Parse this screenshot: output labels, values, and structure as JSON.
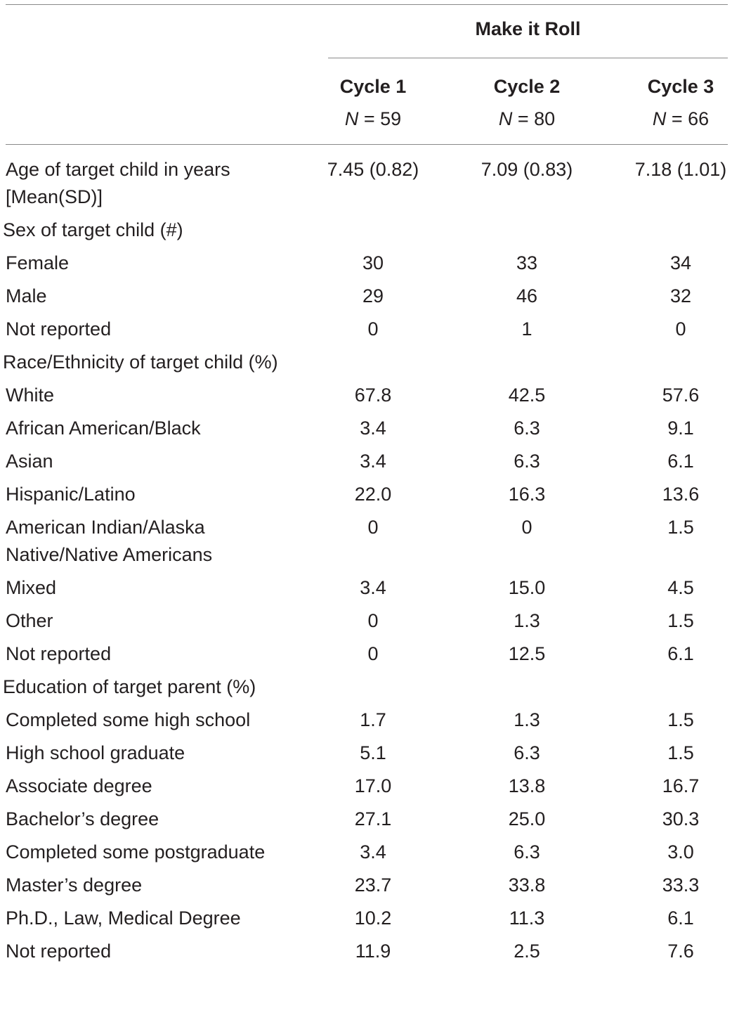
{
  "header": {
    "group_title": "Make it Roll",
    "columns": [
      {
        "name": "Cycle 1",
        "n_label": "N",
        "n_value": " = 59"
      },
      {
        "name": "Cycle 2",
        "n_label": "N",
        "n_value": " = 80"
      },
      {
        "name": "Cycle 3",
        "n_label": "N",
        "n_value": " = 66"
      }
    ]
  },
  "rows": [
    {
      "label": "Age of target child in years [Mean(SD)]",
      "values": [
        "7.45 (0.82)",
        "7.09 (0.83)",
        "7.18 (1.01)"
      ]
    },
    {
      "label": "Sex of target child (#)",
      "section": true,
      "values": [
        "",
        "",
        ""
      ]
    },
    {
      "label": "Female",
      "values": [
        "30",
        "33",
        "34"
      ]
    },
    {
      "label": "Male",
      "values": [
        "29",
        "46",
        "32"
      ]
    },
    {
      "label": "Not reported",
      "values": [
        "0",
        "1",
        "0"
      ]
    },
    {
      "label": "Race/Ethnicity of target child (%)",
      "section": true,
      "values": [
        "",
        "",
        ""
      ]
    },
    {
      "label": "White",
      "values": [
        "67.8",
        "42.5",
        "57.6"
      ]
    },
    {
      "label": "African American/Black",
      "values": [
        "3.4",
        "6.3",
        "9.1"
      ]
    },
    {
      "label": "Asian",
      "values": [
        "3.4",
        "6.3",
        "6.1"
      ]
    },
    {
      "label": "Hispanic/Latino",
      "values": [
        "22.0",
        "16.3",
        "13.6"
      ]
    },
    {
      "label": "American Indian/Alaska Native/Native Americans",
      "values": [
        "0",
        "0",
        "1.5"
      ]
    },
    {
      "label": "Mixed",
      "values": [
        "3.4",
        "15.0",
        "4.5"
      ]
    },
    {
      "label": "Other",
      "values": [
        "0",
        "1.3",
        "1.5"
      ]
    },
    {
      "label": "Not reported",
      "values": [
        "0",
        "12.5",
        "6.1"
      ]
    },
    {
      "label": "Education of target parent (%)",
      "section": true,
      "values": [
        "",
        "",
        ""
      ]
    },
    {
      "label": "Completed some high school",
      "values": [
        "1.7",
        "1.3",
        "1.5"
      ]
    },
    {
      "label": "High school graduate",
      "values": [
        "5.1",
        "6.3",
        "1.5"
      ]
    },
    {
      "label": "Associate degree",
      "values": [
        "17.0",
        "13.8",
        "16.7"
      ]
    },
    {
      "label": "Bachelor’s degree",
      "values": [
        "27.1",
        "25.0",
        "30.3"
      ]
    },
    {
      "label": "Completed some postgraduate",
      "values": [
        "3.4",
        "6.3",
        "3.0"
      ]
    },
    {
      "label": "Master’s degree",
      "values": [
        "23.7",
        "33.8",
        "33.3"
      ]
    },
    {
      "label": "Ph.D., Law, Medical Degree",
      "values": [
        "10.2",
        "11.3",
        "6.1"
      ]
    },
    {
      "label": "Not reported",
      "values": [
        "11.9",
        "2.5",
        "7.6"
      ]
    }
  ]
}
